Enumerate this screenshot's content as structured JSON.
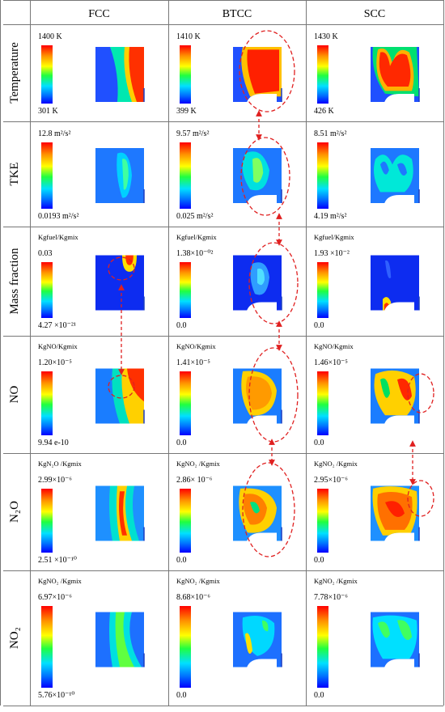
{
  "columns": [
    "FCC",
    "BTCC",
    "SCC"
  ],
  "rows": [
    {
      "label": "Temperature",
      "cells": [
        {
          "top": "1400 K",
          "bottom": "301 K"
        },
        {
          "top": "1410 K",
          "bottom": "399 K"
        },
        {
          "top": "1430 K",
          "bottom": "426 K"
        }
      ]
    },
    {
      "label": "TKE",
      "cells": [
        {
          "top": "12.8 m²/s²",
          "bottom": "0.0193 m²/s²"
        },
        {
          "top": "9.57 m²/s²",
          "bottom": "0.025 m²/s²"
        },
        {
          "top": "8.51 m²/s²",
          "bottom": "4.19 m²/s²"
        }
      ]
    },
    {
      "label": "Mass fraction",
      "cells": [
        {
          "unit": "Kgfuel/Kgmix",
          "top": "0.03",
          "bottom": "4.27 ×10⁻²¹"
        },
        {
          "unit": "Kgfuel/Kgmix",
          "top": "1.38×10⁻⁰²",
          "bottom": "0.0"
        },
        {
          "unit": "Kgfuel/Kgmix",
          "top": "1.93 ×10⁻²",
          "bottom": "0.0"
        }
      ]
    },
    {
      "label": "NO",
      "cells": [
        {
          "unit": "KgNO/Kgmix",
          "top": "1.20×10⁻⁵",
          "bottom": "9.94 e-10"
        },
        {
          "unit": "KgNO/Kgmix",
          "top": "1.41×10⁻⁵",
          "bottom": "0.0"
        },
        {
          "unit": "KgNO/Kgmix",
          "top": "1.46×10⁻⁵",
          "bottom": "0.0"
        }
      ]
    },
    {
      "label": "N₂O",
      "cells": [
        {
          "unit": "KgN₂O /Kgmix",
          "top": "2.99×10⁻⁶",
          "bottom": "2.51 ×10⁻¹⁰"
        },
        {
          "unit": "KgNO₂ /Kgmix",
          "top": "2.86× 10⁻⁶",
          "bottom": "0.0"
        },
        {
          "unit": "KgNO₂ /Kgmix",
          "top": "2.95×10⁻⁶",
          "bottom": "0.0"
        }
      ]
    },
    {
      "label": "NO₂",
      "cells": [
        {
          "unit": "KgNO₂ /Kgmix",
          "top": "6.97×10⁻⁶",
          "bottom": "5.76×10⁻¹⁰"
        },
        {
          "unit": "KgNO₂ /Kgmix",
          "top": "8.68×10⁻⁶",
          "bottom": "0.0"
        },
        {
          "unit": "KgNO₂ /Kgmix",
          "top": "7.78×10⁻⁶",
          "bottom": "0.0"
        }
      ]
    }
  ],
  "colors": {
    "scale": [
      "#ff0000",
      "#ff8000",
      "#ffff00",
      "#00ff40",
      "#00ffff",
      "#0080ff",
      "#0000ff"
    ],
    "annotation": "#e02020"
  }
}
